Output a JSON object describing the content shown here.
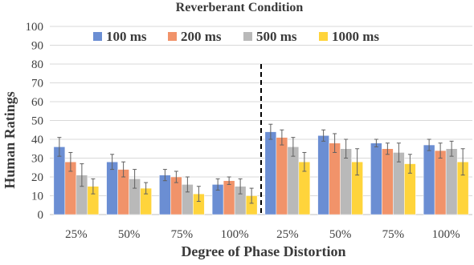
{
  "chart_data": {
    "type": "bar",
    "title": "Reverberant Condition",
    "xlabel": "Degree of Phase Distortion",
    "ylabel": "Human Ratings",
    "ylim": [
      0,
      100
    ],
    "yticks": [
      "0",
      "10",
      "20",
      "30",
      "40",
      "50",
      "60",
      "70",
      "80",
      "90",
      "100"
    ],
    "grid": true,
    "legend_position": "top",
    "categories": [
      "25%",
      "50%",
      "75%",
      "100%",
      "25%",
      "50%",
      "75%",
      "100%"
    ],
    "divider_after_index": 3,
    "series": [
      {
        "name": "100 ms",
        "color": "#6b8ed3",
        "values": [
          36,
          28,
          21,
          16,
          44,
          42,
          38,
          37
        ],
        "errors": [
          5,
          4,
          3,
          3,
          4,
          3,
          2,
          3
        ]
      },
      {
        "name": "200 ms",
        "color": "#f1936a",
        "values": [
          28,
          24,
          20,
          18,
          41,
          38,
          35,
          34
        ],
        "errors": [
          5,
          4,
          3,
          2,
          4,
          5,
          3,
          4
        ]
      },
      {
        "name": "500 ms",
        "color": "#b9b9b9",
        "values": [
          21,
          19,
          16,
          15,
          36,
          35,
          33,
          35
        ],
        "errors": [
          6,
          5,
          4,
          4,
          5,
          5,
          5,
          4
        ]
      },
      {
        "name": "1000 ms",
        "color": "#ffd43b",
        "values": [
          15,
          14,
          11,
          10,
          28,
          28,
          27,
          28
        ],
        "errors": [
          4,
          3,
          4,
          4,
          5,
          7,
          5,
          7
        ]
      }
    ]
  }
}
